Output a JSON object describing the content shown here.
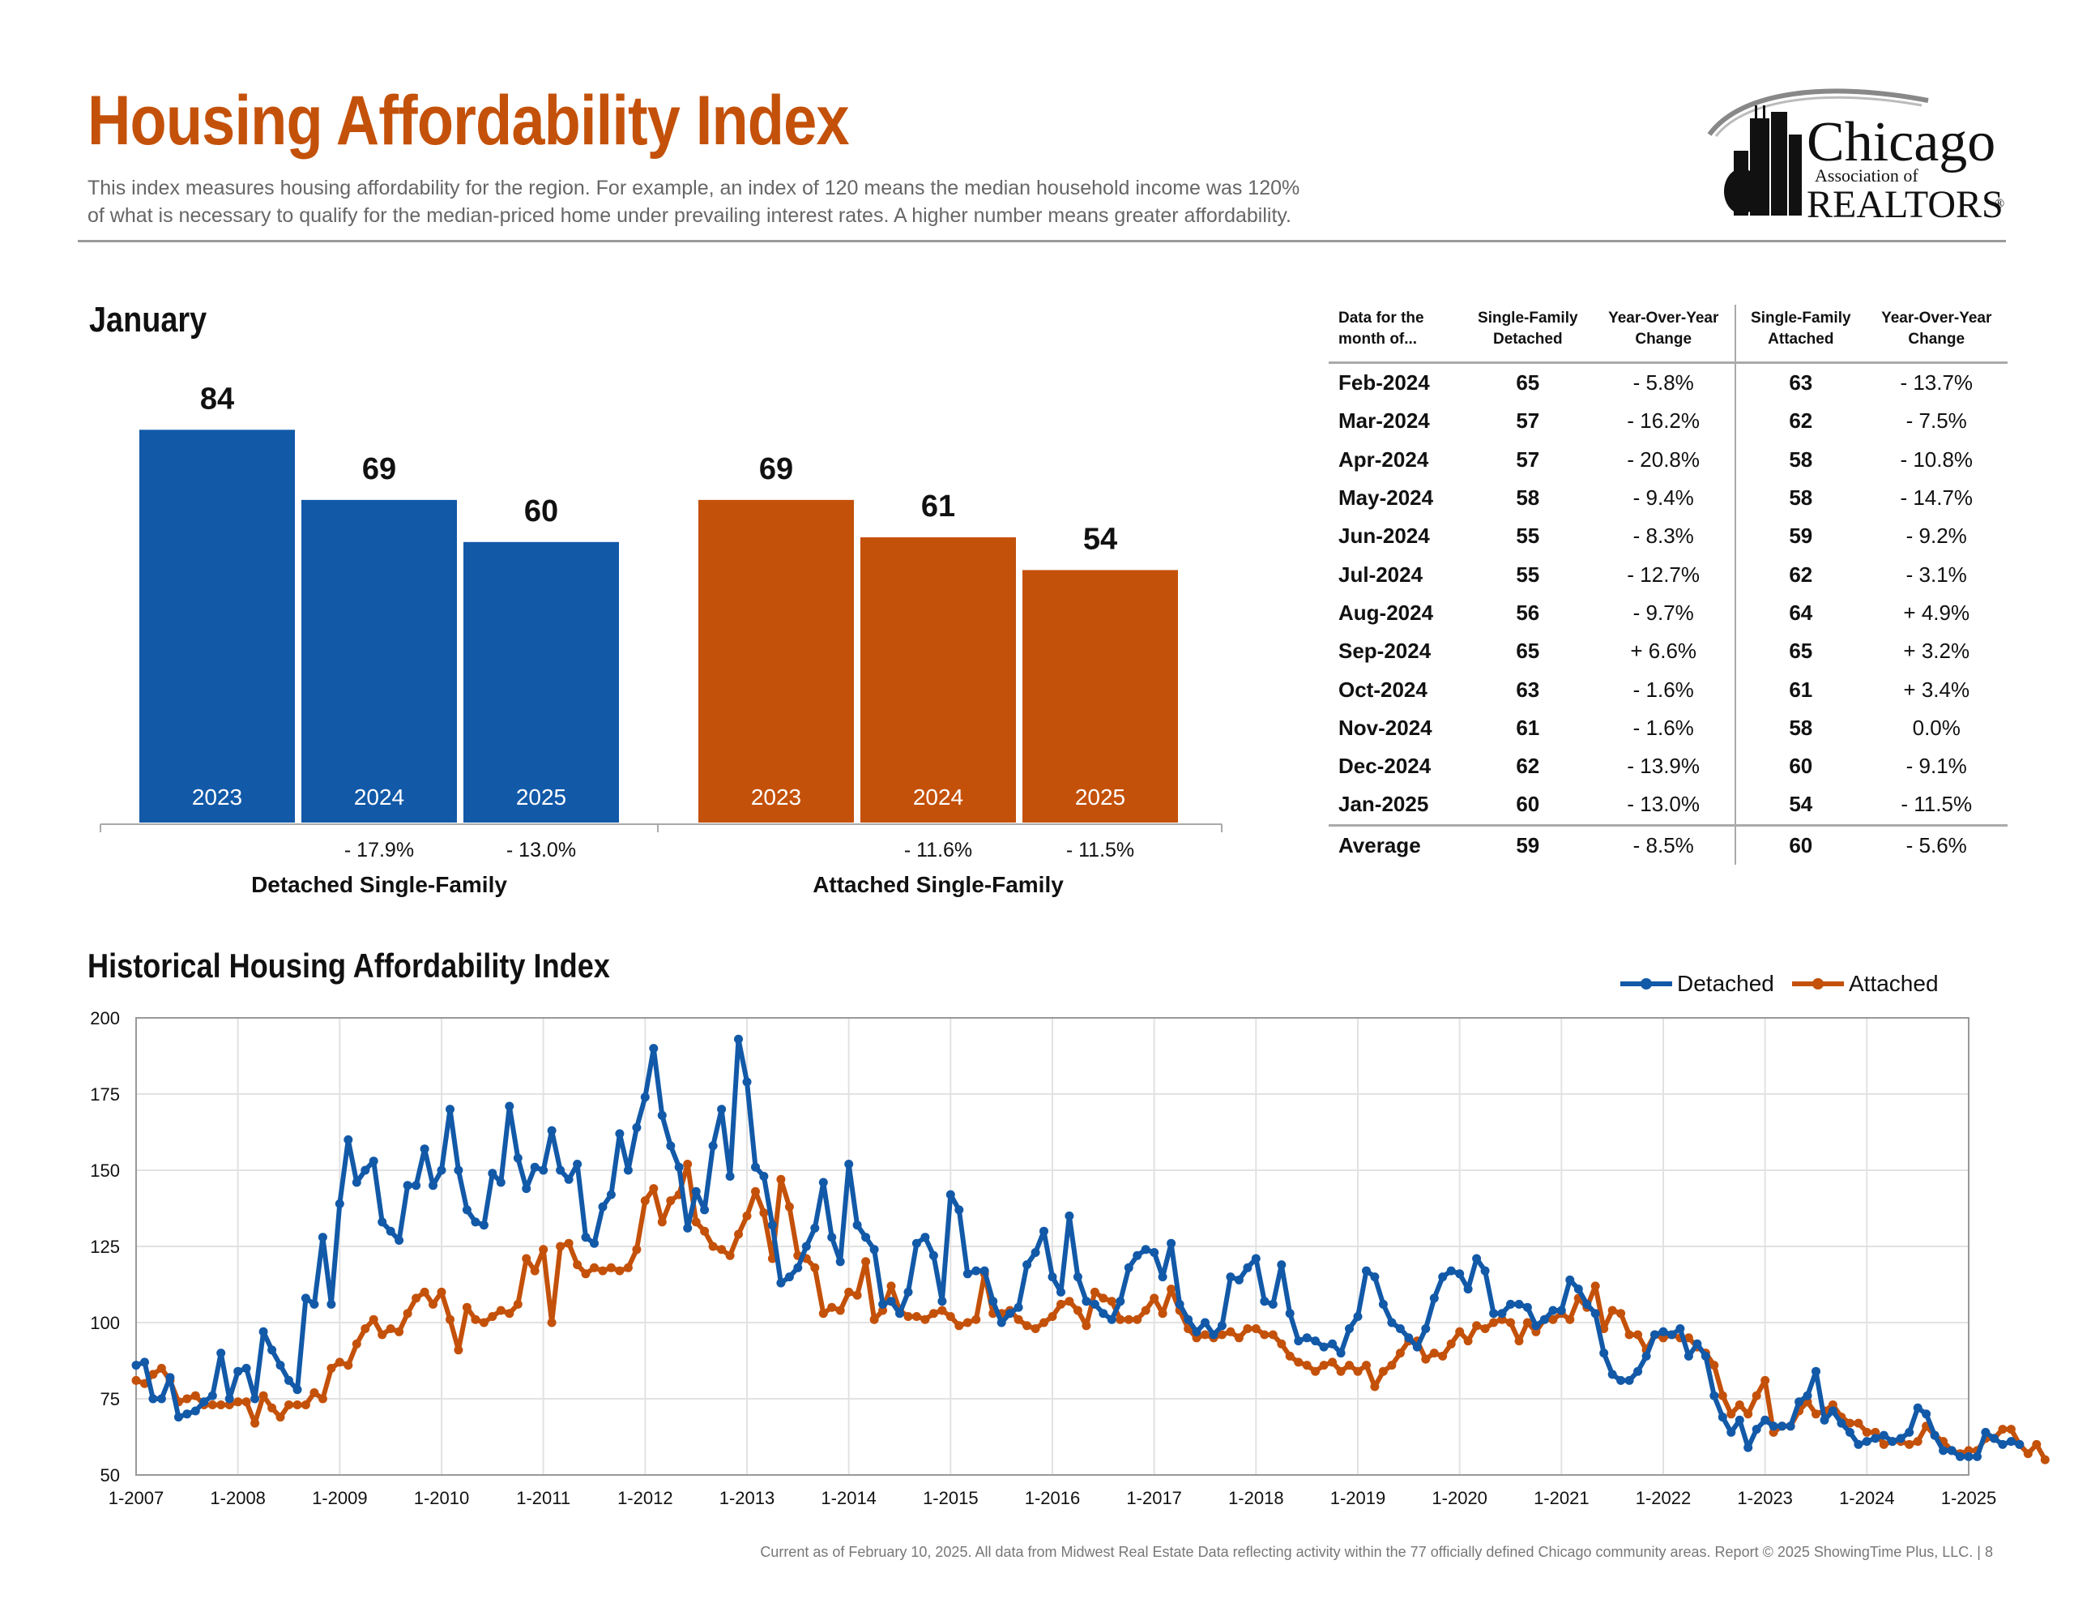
{
  "header": {
    "title": "Housing Affordability Index",
    "description_line1": "This index measures housing affordability for the region. For example, an index of 120 means the median household income was 120%",
    "description_line2": "of what is necessary to qualify for the median-priced home under prevailing interest rates. A higher number means greater affordability.",
    "logo_text_1": "Chicago",
    "logo_text_2": "Association of",
    "logo_text_3": "REALTORS",
    "logo_mark": "®"
  },
  "colors": {
    "detached": "#1259a8",
    "attached": "#c4510a",
    "title": "#c4510a"
  },
  "january": {
    "title": "January",
    "groups": [
      {
        "name": "Detached Single-Family",
        "color": "#1259a8",
        "years": [
          "2023",
          "2024",
          "2025"
        ],
        "values": [
          84,
          69,
          60
        ],
        "value_labels": [
          "84",
          "69",
          "60"
        ],
        "changes": [
          "",
          "- 17.9%",
          "- 13.0%"
        ]
      },
      {
        "name": "Attached Single-Family",
        "color": "#c4510a",
        "years": [
          "2023",
          "2024",
          "2025"
        ],
        "values": [
          69,
          61,
          54
        ],
        "value_labels": [
          "69",
          "61",
          "54"
        ],
        "changes": [
          "",
          "- 11.6%",
          "- 11.5%"
        ]
      }
    ]
  },
  "table": {
    "headers": [
      "Data for the month of...",
      "Single-Family Detached",
      "Year-Over-Year Change",
      "Single-Family Attached",
      "Year-Over-Year Change"
    ],
    "header_lines": [
      [
        "Data for the",
        "month of..."
      ],
      [
        "Single-Family",
        "Detached"
      ],
      [
        "Year-Over-Year",
        "Change"
      ],
      [
        "Single-Family",
        "Attached"
      ],
      [
        "Year-Over-Year",
        "Change"
      ]
    ],
    "rows": [
      [
        "Feb-2024",
        "65",
        "- 5.8%",
        "63",
        "- 13.7%"
      ],
      [
        "Mar-2024",
        "57",
        "- 16.2%",
        "62",
        "- 7.5%"
      ],
      [
        "Apr-2024",
        "57",
        "- 20.8%",
        "58",
        "- 10.8%"
      ],
      [
        "May-2024",
        "58",
        "- 9.4%",
        "58",
        "- 14.7%"
      ],
      [
        "Jun-2024",
        "55",
        "- 8.3%",
        "59",
        "- 9.2%"
      ],
      [
        "Jul-2024",
        "55",
        "- 12.7%",
        "62",
        "- 3.1%"
      ],
      [
        "Aug-2024",
        "56",
        "- 9.7%",
        "64",
        "+ 4.9%"
      ],
      [
        "Sep-2024",
        "65",
        "+ 6.6%",
        "65",
        "+ 3.2%"
      ],
      [
        "Oct-2024",
        "63",
        "- 1.6%",
        "61",
        "+ 3.4%"
      ],
      [
        "Nov-2024",
        "61",
        "- 1.6%",
        "58",
        "0.0%"
      ],
      [
        "Dec-2024",
        "62",
        "- 13.9%",
        "60",
        "- 9.1%"
      ],
      [
        "Jan-2025",
        "60",
        "- 13.0%",
        "54",
        "- 11.5%"
      ]
    ],
    "average": [
      "Average",
      "59",
      "- 8.5%",
      "60",
      "- 5.6%"
    ]
  },
  "historical": {
    "title": "Historical Housing Affordability Index",
    "legend": [
      "Detached",
      "Attached"
    ]
  },
  "chart_data": [
    {
      "type": "bar",
      "title": "January",
      "categories": [
        "2023",
        "2024",
        "2025"
      ],
      "series": [
        {
          "name": "Detached Single-Family",
          "values": [
            84,
            69,
            60
          ],
          "yoy_change": [
            null,
            "- 17.9%",
            "- 13.0%"
          ]
        },
        {
          "name": "Attached Single-Family",
          "values": [
            69,
            61,
            54
          ],
          "yoy_change": [
            null,
            "- 11.6%",
            "- 11.5%"
          ]
        }
      ]
    },
    {
      "type": "line",
      "title": "Historical Housing Affordability Index",
      "x_start": "1-2007",
      "x_step": "month",
      "xticks": [
        "1-2007",
        "1-2008",
        "1-2009",
        "1-2010",
        "1-2011",
        "1-2012",
        "1-2013",
        "1-2014",
        "1-2015",
        "1-2016",
        "1-2017",
        "1-2018",
        "1-2019",
        "1-2020",
        "1-2021",
        "1-2022",
        "1-2023",
        "1-2024",
        "1-2025"
      ],
      "yticks": [
        50,
        75,
        100,
        125,
        150,
        175,
        200
      ],
      "ylim": [
        50,
        200
      ],
      "grid": true,
      "legend_position": "top-right",
      "series": [
        {
          "name": "Detached",
          "values": [
            86,
            87,
            75,
            75,
            82,
            69,
            70,
            71,
            74,
            76,
            90,
            75,
            84,
            85,
            75,
            97,
            91,
            86,
            81,
            78,
            108,
            106,
            128,
            106,
            139,
            160,
            146,
            150,
            153,
            133,
            130,
            127,
            145,
            145,
            157,
            145,
            150,
            170,
            150,
            137,
            133,
            132,
            149,
            146,
            171,
            154,
            144,
            151,
            150,
            163,
            150,
            147,
            152,
            128,
            126,
            138,
            142,
            162,
            150,
            164,
            174,
            190,
            168,
            158,
            151,
            131,
            143,
            137,
            158,
            170,
            148,
            193,
            179,
            151,
            148,
            132,
            113,
            115,
            118,
            125,
            131,
            146,
            128,
            120,
            152,
            132,
            128,
            124,
            106,
            107,
            103,
            110,
            126,
            128,
            122,
            107,
            142,
            137,
            116,
            117,
            117,
            107,
            100,
            103,
            105,
            119,
            123,
            130,
            115,
            110,
            135,
            115,
            107,
            106,
            103,
            101,
            107,
            118,
            122,
            124,
            123,
            115,
            126,
            106,
            101,
            97,
            100,
            96,
            99,
            115,
            114,
            118,
            121,
            107,
            106,
            119,
            103,
            94,
            95,
            94,
            92,
            93,
            90,
            98,
            102,
            117,
            115,
            106,
            100,
            98,
            95,
            92,
            98,
            108,
            115,
            117,
            116,
            111,
            121,
            117,
            103,
            103,
            106,
            106,
            105,
            99,
            101,
            104,
            104,
            114,
            111,
            106,
            103,
            90,
            83,
            81,
            81,
            84,
            89,
            96,
            97,
            96,
            98,
            89,
            93,
            89,
            76,
            69,
            64,
            68,
            59,
            65,
            68,
            66,
            66,
            66,
            74,
            76,
            84,
            68,
            71,
            67,
            64,
            60,
            61,
            62,
            63,
            61,
            62,
            64,
            72,
            70,
            63,
            58,
            58,
            56,
            56,
            56,
            64,
            62,
            60,
            61,
            60
          ]
        },
        {
          "name": "Attached",
          "values": [
            81,
            80,
            83,
            85,
            81,
            74,
            75,
            76,
            73,
            73,
            73,
            73,
            74,
            74,
            67,
            76,
            72,
            69,
            73,
            73,
            73,
            77,
            75,
            85,
            87,
            86,
            93,
            98,
            101,
            96,
            98,
            97,
            103,
            108,
            110,
            106,
            110,
            101,
            91,
            105,
            101,
            100,
            102,
            104,
            103,
            106,
            121,
            117,
            124,
            100,
            125,
            126,
            119,
            116,
            118,
            117,
            118,
            117,
            118,
            124,
            140,
            144,
            133,
            140,
            142,
            152,
            133,
            130,
            125,
            124,
            122,
            129,
            135,
            143,
            136,
            121,
            147,
            138,
            122,
            121,
            118,
            103,
            105,
            104,
            110,
            109,
            120,
            101,
            104,
            112,
            104,
            102,
            102,
            101,
            103,
            104,
            102,
            99,
            100,
            101,
            116,
            103,
            103,
            104,
            101,
            99,
            98,
            100,
            102,
            106,
            107,
            104,
            99,
            110,
            108,
            107,
            101,
            101,
            101,
            104,
            108,
            103,
            111,
            104,
            98,
            95,
            96,
            95,
            96,
            97,
            95,
            98,
            98,
            96,
            96,
            93,
            89,
            87,
            86,
            84,
            86,
            87,
            84,
            86,
            84,
            86,
            79,
            84,
            86,
            90,
            94,
            94,
            88,
            90,
            89,
            93,
            97,
            94,
            99,
            98,
            100,
            101,
            100,
            94,
            100,
            97,
            101,
            101,
            103,
            101,
            108,
            105,
            112,
            98,
            104,
            103,
            96,
            96,
            91,
            96,
            95,
            96,
            95,
            95,
            92,
            90,
            86,
            76,
            70,
            73,
            70,
            76,
            81,
            64,
            66,
            66,
            71,
            74,
            70,
            71,
            73,
            69,
            67,
            67,
            64,
            64,
            60,
            61,
            61,
            60,
            61,
            66,
            63,
            61,
            58,
            57,
            58,
            58,
            62,
            62,
            65,
            65,
            60,
            57,
            60,
            55
          ]
        }
      ]
    }
  ],
  "footer": "Current as of February 10, 2025.  All data from Midwest Real Estate Data reflecting activity within the 77 officially defined Chicago community areas. Report © 2025 ShowingTime Plus, LLC.  |  8"
}
